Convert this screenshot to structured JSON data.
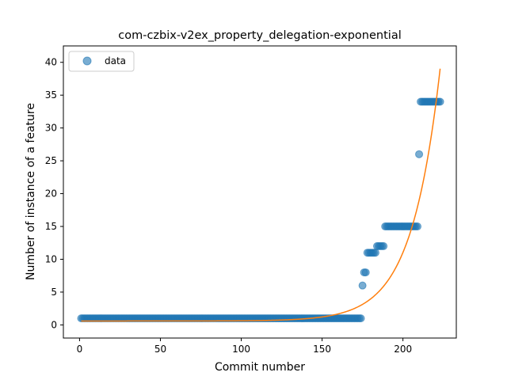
{
  "chart_data": {
    "type": "scatter",
    "title": "com-czbix-v2ex_property_delegation-exponential",
    "xlabel": "Commit number",
    "ylabel": "Number of instance of a feature",
    "xlim": [
      -10,
      233
    ],
    "ylim": [
      -2,
      42.5
    ],
    "xticks": [
      0,
      50,
      100,
      150,
      200
    ],
    "yticks": [
      0,
      5,
      10,
      15,
      20,
      25,
      30,
      35,
      40
    ],
    "legend": {
      "position": "top-left",
      "entries": [
        "data"
      ]
    },
    "colors": {
      "data": "#1f77b4",
      "fit": "#ff7f0e"
    },
    "series": [
      {
        "name": "data",
        "kind": "scatter",
        "segments": [
          {
            "x_from": 1,
            "x_to": 173,
            "y": 1
          }
        ],
        "points": [
          [
            174,
            1
          ],
          [
            175,
            6
          ],
          [
            176,
            8
          ],
          [
            177,
            8
          ],
          [
            178,
            11
          ],
          [
            179,
            11
          ],
          [
            180,
            11
          ],
          [
            181,
            11
          ],
          [
            182,
            11
          ],
          [
            183,
            11
          ],
          [
            184,
            12
          ],
          [
            185,
            12
          ],
          [
            186,
            12
          ],
          [
            187,
            12
          ],
          [
            188,
            12
          ],
          [
            189,
            15
          ],
          [
            190,
            15
          ],
          [
            191,
            15
          ],
          [
            192,
            15
          ],
          [
            193,
            15
          ],
          [
            194,
            15
          ],
          [
            195,
            15
          ],
          [
            196,
            15
          ],
          [
            197,
            15
          ],
          [
            198,
            15
          ],
          [
            199,
            15
          ],
          [
            200,
            15
          ],
          [
            201,
            15
          ],
          [
            202,
            15
          ],
          [
            203,
            15
          ],
          [
            204,
            15
          ],
          [
            205,
            15
          ],
          [
            206,
            15
          ],
          [
            207,
            15
          ],
          [
            208,
            15
          ],
          [
            209,
            15
          ],
          [
            210,
            26
          ],
          [
            211,
            34
          ],
          [
            212,
            34
          ],
          [
            213,
            34
          ],
          [
            214,
            34
          ],
          [
            215,
            34
          ],
          [
            216,
            34
          ],
          [
            217,
            34
          ],
          [
            218,
            34
          ],
          [
            219,
            34
          ],
          [
            220,
            34
          ],
          [
            221,
            34
          ],
          [
            222,
            34
          ],
          [
            223,
            34
          ]
        ]
      },
      {
        "kind": "line",
        "x_from": 1,
        "x_to": 223,
        "model": "exponential",
        "params": {
          "a": 0.000124,
          "b": 0.0567,
          "c": 0.6
        }
      }
    ]
  }
}
